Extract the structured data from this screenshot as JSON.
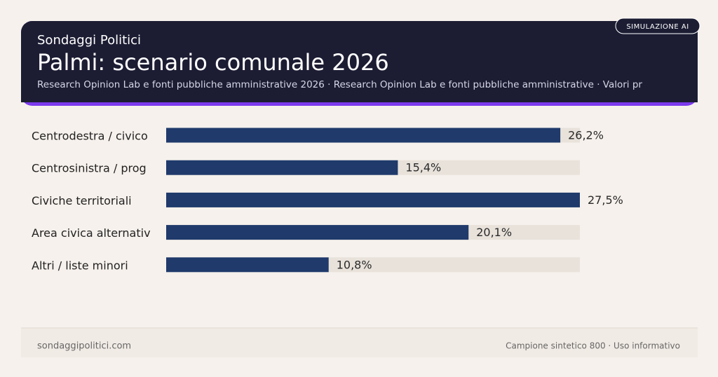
{
  "header": {
    "brand": "Sondaggi Politici",
    "badge": "SIMULAZIONE AI"
  },
  "chart_data": {
    "type": "bar",
    "orientation": "horizontal",
    "title": "Palmi: scenario comunale 2026",
    "subtitle": "Research Opinion Lab e fonti pubbliche amministrative 2026 · Research Opinion Lab e fonti pubbliche amministrative · Valori pr",
    "categories": [
      "Centrodestra / civico",
      "Centrosinistra / prog",
      "Civiche territoriali",
      "Area civica alternativ",
      "Altri / liste minori"
    ],
    "values": [
      26.2,
      15.4,
      27.5,
      20.1,
      10.8
    ],
    "value_labels": [
      "26,2%",
      "15,4%",
      "27,5%",
      "20,1%",
      "10,8%"
    ],
    "color": "#1f3a6b",
    "xlim": [
      0,
      27.5
    ]
  },
  "footer": {
    "left": "sondaggipolitici.com",
    "right": "Campione sintetico 800 · Uso informativo"
  }
}
